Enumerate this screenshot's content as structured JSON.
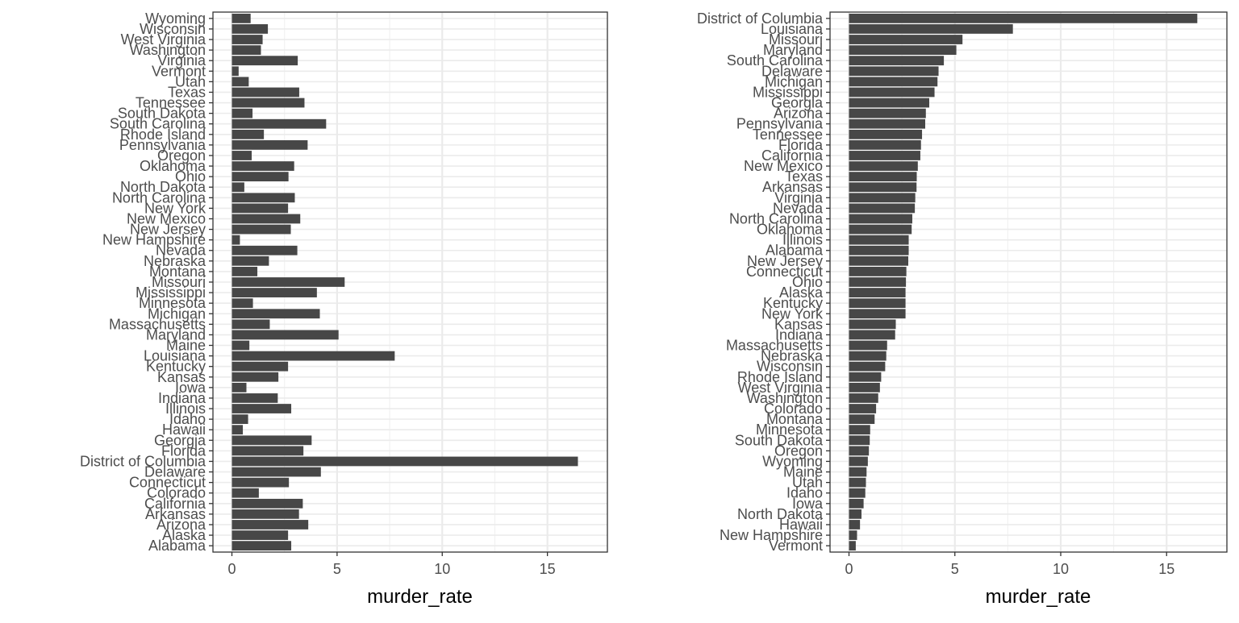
{
  "chart_data": [
    {
      "type": "bar",
      "orientation": "horizontal",
      "order": "alphabetical",
      "xlabel": "murder_rate",
      "ylabel": "",
      "xlim": [
        0,
        17.2
      ],
      "xticks": [
        0,
        5,
        10,
        15
      ],
      "grid": true,
      "bar_color": "#474747",
      "categories": [
        "Alabama",
        "Alaska",
        "Arizona",
        "Arkansas",
        "California",
        "Colorado",
        "Connecticut",
        "Delaware",
        "District of Columbia",
        "Florida",
        "Georgia",
        "Hawaii",
        "Idaho",
        "Illinois",
        "Indiana",
        "Iowa",
        "Kansas",
        "Kentucky",
        "Louisiana",
        "Maine",
        "Maryland",
        "Massachusetts",
        "Michigan",
        "Minnesota",
        "Mississippi",
        "Missouri",
        "Montana",
        "Nebraska",
        "Nevada",
        "New Hampshire",
        "New Jersey",
        "New Mexico",
        "New York",
        "North Carolina",
        "North Dakota",
        "Ohio",
        "Oklahoma",
        "Oregon",
        "Pennsylvania",
        "Rhode Island",
        "South Carolina",
        "South Dakota",
        "Tennessee",
        "Texas",
        "Utah",
        "Vermont",
        "Virginia",
        "Washington",
        "West Virginia",
        "Wisconsin",
        "Wyoming"
      ],
      "values": [
        2.82,
        2.67,
        3.63,
        3.19,
        3.37,
        1.28,
        2.71,
        4.23,
        16.45,
        3.4,
        3.79,
        0.52,
        0.77,
        2.82,
        2.18,
        0.69,
        2.21,
        2.67,
        7.74,
        0.83,
        5.07,
        1.8,
        4.18,
        1.0,
        4.04,
        5.36,
        1.21,
        1.76,
        3.11,
        0.38,
        2.8,
        3.25,
        2.67,
        2.99,
        0.59,
        2.69,
        2.96,
        0.94,
        3.6,
        1.52,
        4.48,
        0.98,
        3.45,
        3.2,
        0.8,
        0.32,
        3.13,
        1.38,
        1.46,
        1.71,
        0.89
      ]
    },
    {
      "type": "bar",
      "orientation": "horizontal",
      "order": "sorted by value",
      "xlabel": "murder_rate",
      "ylabel": "",
      "xlim": [
        0,
        17.2
      ],
      "xticks": [
        0,
        5,
        10,
        15
      ],
      "grid": true,
      "bar_color": "#474747",
      "categories": [
        "Vermont",
        "New Hampshire",
        "Hawaii",
        "North Dakota",
        "Iowa",
        "Idaho",
        "Utah",
        "Maine",
        "Wyoming",
        "Oregon",
        "South Dakota",
        "Minnesota",
        "Montana",
        "Colorado",
        "Washington",
        "West Virginia",
        "Rhode Island",
        "Wisconsin",
        "Nebraska",
        "Massachusetts",
        "Indiana",
        "Kansas",
        "New York",
        "Kentucky",
        "Alaska",
        "Ohio",
        "Connecticut",
        "New Jersey",
        "Alabama",
        "Illinois",
        "Oklahoma",
        "North Carolina",
        "Nevada",
        "Virginia",
        "Arkansas",
        "Texas",
        "New Mexico",
        "California",
        "Florida",
        "Tennessee",
        "Pennsylvania",
        "Arizona",
        "Georgia",
        "Mississippi",
        "Michigan",
        "Delaware",
        "South Carolina",
        "Maryland",
        "Missouri",
        "Louisiana",
        "District of Columbia"
      ],
      "values": [
        0.32,
        0.38,
        0.52,
        0.59,
        0.69,
        0.77,
        0.8,
        0.83,
        0.89,
        0.94,
        0.98,
        1.0,
        1.21,
        1.28,
        1.38,
        1.46,
        1.52,
        1.71,
        1.76,
        1.8,
        2.18,
        2.21,
        2.67,
        2.67,
        2.67,
        2.69,
        2.71,
        2.8,
        2.82,
        2.82,
        2.96,
        2.99,
        3.11,
        3.13,
        3.19,
        3.2,
        3.25,
        3.37,
        3.4,
        3.45,
        3.6,
        3.63,
        3.79,
        4.04,
        4.18,
        4.23,
        4.48,
        5.07,
        5.36,
        7.74,
        16.45
      ]
    }
  ]
}
